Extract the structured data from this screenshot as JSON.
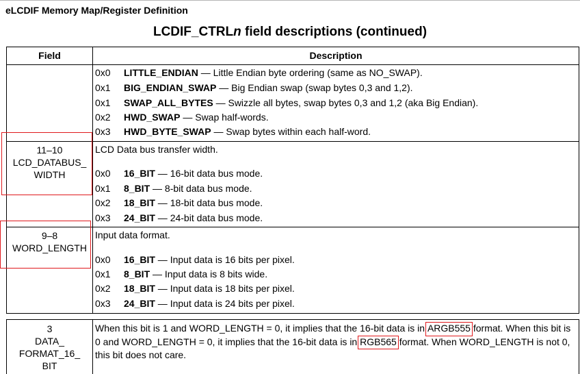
{
  "page": {
    "header": "eLCDIF Memory Map/Register Definition",
    "table_title_prefix": "LCDIF_CTRL",
    "table_title_italic": "n",
    "table_title_suffix": " field descriptions (continued)"
  },
  "table": {
    "col_field": "Field",
    "col_description": "Description"
  },
  "rows": [
    {
      "field_bits": "",
      "field_name": "",
      "description": "",
      "enums": [
        {
          "code": "0x0",
          "name": "LITTLE_ENDIAN",
          "text": " — Little Endian byte ordering (same as NO_SWAP)."
        },
        {
          "code": "0x1",
          "name": "BIG_ENDIAN_SWAP",
          "text": " — Big Endian swap (swap bytes 0,3 and 1,2)."
        },
        {
          "code": "0x1",
          "name": "SWAP_ALL_BYTES",
          "text": " — Swizzle all bytes, swap bytes 0,3 and 1,2 (aka Big Endian)."
        },
        {
          "code": "0x2",
          "name": "HWD_SWAP",
          "text": " — Swap half-words."
        },
        {
          "code": "0x3",
          "name": "HWD_BYTE_SWAP",
          "text": " — Swap bytes within each half-word."
        }
      ]
    },
    {
      "field_bits": "11–10",
      "field_name_l1": "LCD_DATABUS_",
      "field_name_l2": "WIDTH",
      "description": "LCD Data bus transfer width.",
      "enums": [
        {
          "code": "0x0",
          "name": "16_BIT",
          "text": " — 16-bit data bus mode."
        },
        {
          "code": "0x1",
          "name": "8_BIT",
          "text": " — 8-bit data bus mode."
        },
        {
          "code": "0x2",
          "name": "18_BIT",
          "text": " — 18-bit data bus mode."
        },
        {
          "code": "0x3",
          "name": "24_BIT",
          "text": " — 24-bit data bus mode."
        }
      ]
    },
    {
      "field_bits": "9–8",
      "field_name_l1": "WORD_LENGTH",
      "description": "Input data format.",
      "enums": [
        {
          "code": "0x0",
          "name": "16_BIT",
          "text": " — Input data is 16 bits per pixel."
        },
        {
          "code": "0x1",
          "name": "8_BIT",
          "text": " — Input data is 8 bits wide."
        },
        {
          "code": "0x2",
          "name": "18_BIT",
          "text": " — Input data is 18 bits per pixel."
        },
        {
          "code": "0x3",
          "name": "24_BIT",
          "text": " — Input data is 24 bits per pixel."
        }
      ]
    },
    {
      "field_bits": "3",
      "field_name_l1": "DATA_",
      "field_name_l2": "FORMAT_16_",
      "field_name_l3": "BIT",
      "desc_p1": "When this bit is 1 and WORD_LENGTH = 0, it implies that the 16-bit data is in ",
      "desc_hl1": "ARGB555",
      "desc_p2": " format. When this bit is 0 and WORD_LENGTH = 0, it implies that the 16-bit data is in ",
      "desc_hl2": "RGB565",
      "desc_p3": " format. When WORD_LENGTH is not 0, this bit does not care."
    }
  ]
}
